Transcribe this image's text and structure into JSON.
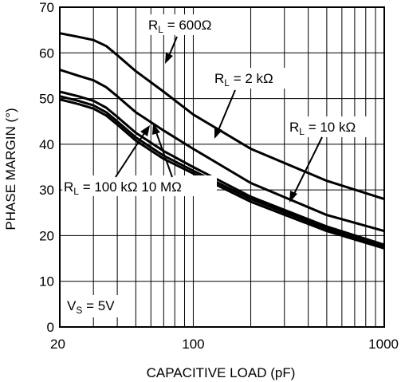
{
  "chart_data": {
    "type": "line",
    "xscale": "log",
    "xlim": [
      20,
      1000
    ],
    "ylim": [
      0,
      70
    ],
    "xlabel": "CAPACITIVE LOAD (pF)",
    "ylabel": "PHASE MARGIN (°)",
    "xticks": [
      "20",
      "100",
      "1000"
    ],
    "yticks": [
      "0",
      "10",
      "20",
      "30",
      "40",
      "50",
      "60",
      "70"
    ],
    "grid": true,
    "series": [
      {
        "name": "600Ω",
        "x": [
          20,
          25,
          30,
          35,
          40,
          50,
          70,
          100,
          200,
          500,
          1000
        ],
        "y": [
          64.3,
          63.5,
          62.8,
          61.5,
          59.5,
          56,
          51.5,
          46.5,
          39,
          32,
          28
        ]
      },
      {
        "name": "2 kΩ",
        "x": [
          20,
          25,
          30,
          35,
          40,
          50,
          70,
          100,
          200,
          500,
          1000
        ],
        "y": [
          56.3,
          55,
          54,
          52.5,
          50.5,
          47,
          43,
          39,
          31.5,
          24.5,
          21
        ]
      },
      {
        "name": "10 kΩ",
        "x": [
          20,
          25,
          30,
          35,
          40,
          50,
          70,
          100,
          200,
          500,
          1000
        ],
        "y": [
          51.5,
          50.5,
          49.5,
          48,
          46,
          42.5,
          38.5,
          35,
          28.5,
          22,
          18
        ]
      },
      {
        "name": "100 kΩ",
        "x": [
          20,
          25,
          30,
          35,
          40,
          50,
          70,
          100,
          200,
          500,
          1000
        ],
        "y": [
          50.5,
          49.5,
          48.5,
          47,
          45,
          41.5,
          37.5,
          34.2,
          28,
          21.5,
          17.5
        ]
      },
      {
        "name": "10 MΩ",
        "x": [
          20,
          25,
          30,
          35,
          40,
          50,
          70,
          100,
          200,
          500,
          1000
        ],
        "y": [
          49.8,
          48.8,
          47.8,
          46.3,
          44.3,
          40.8,
          36.8,
          33.6,
          27.4,
          21,
          17.2
        ]
      }
    ],
    "annotations": {
      "rl_600": {
        "prefix": "R",
        "sub": "L",
        "text": " = 600Ω"
      },
      "rl_2k": {
        "prefix": "R",
        "sub": "L",
        "text": " = 2 kΩ"
      },
      "rl_10k": {
        "prefix": "R",
        "sub": "L",
        "text": " = 10 kΩ"
      },
      "rl_100k": {
        "prefix": "R",
        "sub": "L",
        "text": " = 100 kΩ  10 MΩ"
      },
      "vs": {
        "prefix": "V",
        "sub": "S",
        "text": " = 5V"
      }
    }
  }
}
